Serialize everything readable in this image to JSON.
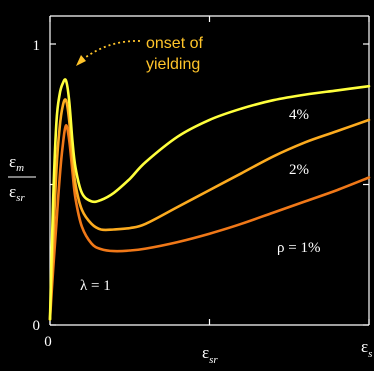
{
  "chart_data": {
    "type": "line",
    "title": "",
    "xlabel": "ε",
    "xlabel_sub": "sr",
    "ylabel_num": "ε",
    "ylabel_num_sub": "m",
    "ylabel_den": "ε",
    "ylabel_den_sub": "sr",
    "xlim": [
      0,
      1
    ],
    "ylim": [
      0,
      1
    ],
    "x_ticks": [
      0,
      0.5,
      1
    ],
    "y_ticks": [
      0,
      0.5,
      1
    ],
    "x_tick_labels": [
      {
        "value": 0,
        "label": "0"
      }
    ],
    "x_end_label": "ε",
    "x_end_label_sub": "s",
    "y_tick_labels": [
      {
        "value": 0,
        "label": "0"
      },
      {
        "value": 1,
        "label": "1"
      }
    ],
    "series": [
      {
        "name": "ρ = 1%",
        "color": "#f07818",
        "x": [
          0.0,
          0.01,
          0.02,
          0.03,
          0.04,
          0.05,
          0.06,
          0.07,
          0.08,
          0.1,
          0.13,
          0.16,
          0.2,
          0.25,
          0.3,
          0.4,
          0.5,
          0.6,
          0.7,
          0.8,
          0.9,
          1.0
        ],
        "y": [
          0.02,
          0.2,
          0.36,
          0.52,
          0.64,
          0.71,
          0.66,
          0.55,
          0.45,
          0.35,
          0.29,
          0.27,
          0.263,
          0.265,
          0.272,
          0.295,
          0.325,
          0.36,
          0.4,
          0.44,
          0.48,
          0.525
        ]
      },
      {
        "name": "2%",
        "color": "#fcab1f",
        "x": [
          0.0,
          0.01,
          0.02,
          0.03,
          0.04,
          0.05,
          0.06,
          0.07,
          0.08,
          0.1,
          0.13,
          0.16,
          0.2,
          0.25,
          0.3,
          0.4,
          0.5,
          0.6,
          0.7,
          0.8,
          0.9,
          1.0
        ],
        "y": [
          0.02,
          0.3,
          0.55,
          0.7,
          0.78,
          0.8,
          0.73,
          0.6,
          0.5,
          0.41,
          0.36,
          0.34,
          0.34,
          0.345,
          0.36,
          0.42,
          0.48,
          0.54,
          0.6,
          0.65,
          0.69,
          0.73
        ]
      },
      {
        "name": "4%",
        "color": "#ffff3c",
        "x": [
          0.0,
          0.01,
          0.02,
          0.03,
          0.04,
          0.05,
          0.06,
          0.07,
          0.08,
          0.1,
          0.13,
          0.16,
          0.2,
          0.25,
          0.3,
          0.4,
          0.5,
          0.6,
          0.7,
          0.8,
          0.9,
          1.0
        ],
        "y": [
          0.02,
          0.45,
          0.72,
          0.82,
          0.86,
          0.87,
          0.8,
          0.66,
          0.56,
          0.47,
          0.44,
          0.445,
          0.47,
          0.52,
          0.58,
          0.67,
          0.73,
          0.77,
          0.8,
          0.82,
          0.835,
          0.85
        ]
      }
    ],
    "annotations": [
      {
        "text": "onset of",
        "color": "#ffc42a"
      },
      {
        "text": "yielding",
        "color": "#ffc42a"
      },
      {
        "text": "λ = 1",
        "color": "#ffffff"
      }
    ],
    "grid": false,
    "legend": "none"
  }
}
